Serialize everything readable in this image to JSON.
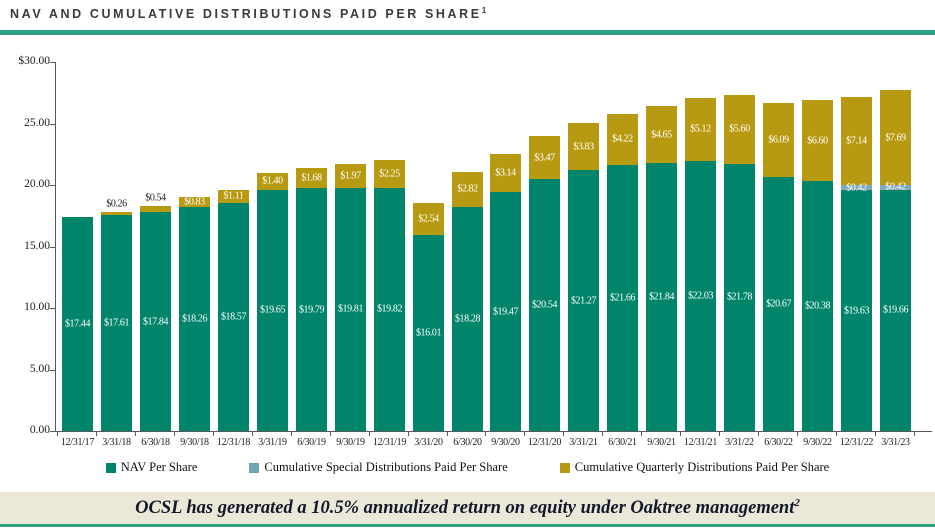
{
  "header": {
    "title": "NAV AND CUMULATIVE DISTRIBUTIONS PAID PER SHARE",
    "title_superscript": "1"
  },
  "footer": {
    "text": "OCSL has generated a 10.5% annualized return on equity under Oaktree management",
    "superscript": "2"
  },
  "colors": {
    "nav_green": "#00846a",
    "quarterly_gold": "#b89a12",
    "special_blue": "#7fa9bc",
    "rule_green": "#2f9e83",
    "footer_bg": "#ece8d8"
  },
  "legend": [
    {
      "label": "NAV Per Share",
      "color": "#00846a"
    },
    {
      "label": "Cumulative Special Distributions Paid Per Share",
      "color": "#6fa3b5"
    },
    {
      "label": "Cumulative Quarterly Distributions Paid Per Share",
      "color": "#b89a12"
    }
  ],
  "chart_data": {
    "type": "bar",
    "stacked": true,
    "title": "NAV and Cumulative Distributions Paid Per Share",
    "xlabel": "",
    "ylabel": "",
    "ylim": [
      0,
      30
    ],
    "y_ticks": [
      "$30.00",
      "25.00",
      "20.00",
      "15.00",
      "10.00",
      "5.00",
      "0.00"
    ],
    "grid": false,
    "legend_position": "bottom",
    "categories": [
      "12/31/17",
      "3/31/18",
      "6/30/18",
      "9/30/18",
      "12/31/18",
      "3/31/19",
      "6/30/19",
      "9/30/19",
      "12/31/19",
      "3/31/20",
      "6/30/20",
      "9/30/20",
      "12/31/20",
      "3/31/21",
      "6/30/21",
      "9/30/21",
      "12/31/21",
      "3/31/22",
      "6/30/22",
      "9/30/22",
      "12/31/22",
      "3/31/23"
    ],
    "series": [
      {
        "name": "NAV Per Share",
        "color": "#00846a",
        "values": [
          17.44,
          17.61,
          17.84,
          18.26,
          18.57,
          19.65,
          19.79,
          19.81,
          19.82,
          16.01,
          18.28,
          19.47,
          20.54,
          21.27,
          21.66,
          21.84,
          22.03,
          21.78,
          20.67,
          20.38,
          19.63,
          19.66
        ]
      },
      {
        "name": "Cumulative Special Distributions Paid Per Share",
        "color": "#7fa9bc",
        "values": [
          0,
          0,
          0,
          0,
          0,
          0,
          0,
          0,
          0,
          0,
          0,
          0,
          0,
          0,
          0,
          0,
          0,
          0,
          0,
          0,
          0.42,
          0.42
        ]
      },
      {
        "name": "Cumulative Quarterly Distributions Paid Per Share",
        "color": "#b89a12",
        "values": [
          0,
          0.26,
          0.54,
          0.83,
          1.11,
          1.4,
          1.68,
          1.97,
          2.25,
          2.54,
          2.82,
          3.14,
          3.47,
          3.83,
          4.22,
          4.65,
          5.12,
          5.6,
          6.09,
          6.6,
          7.14,
          7.69
        ]
      }
    ]
  }
}
